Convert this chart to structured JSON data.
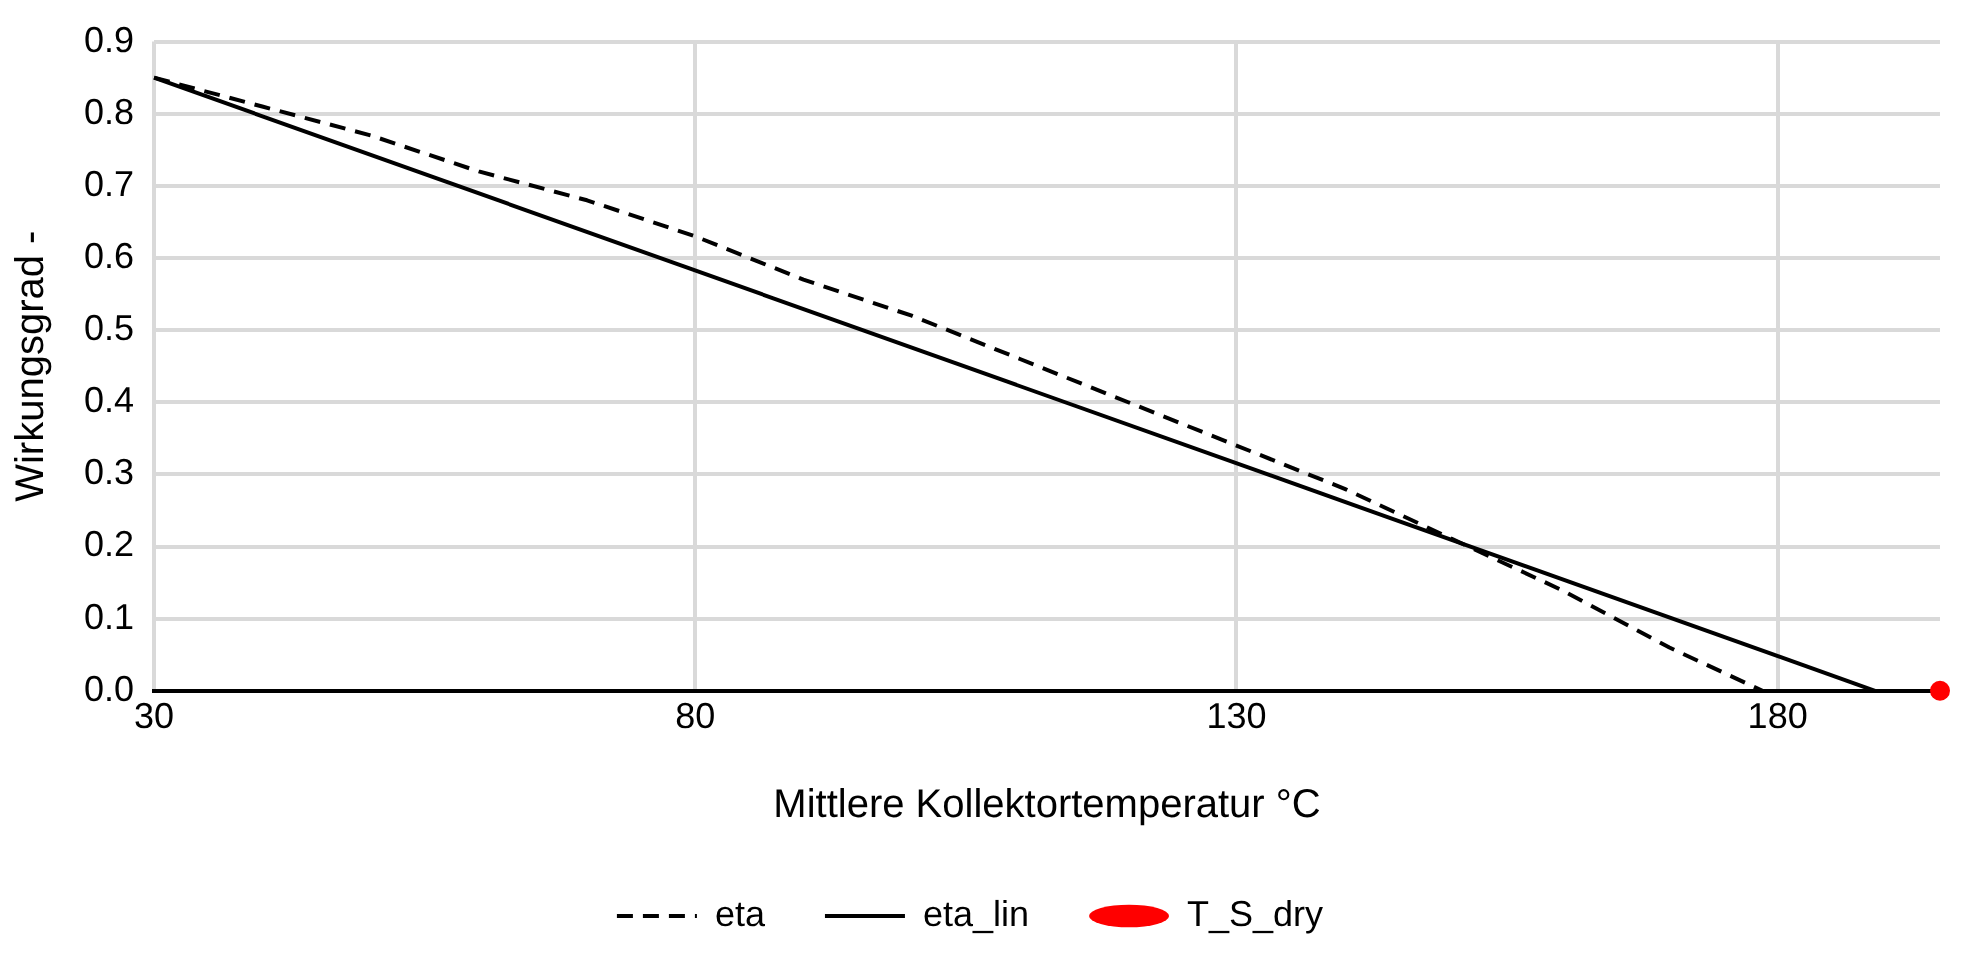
{
  "chart_data": {
    "type": "line",
    "xlabel": "Mittlere Kollektortemperatur °C",
    "ylabel": "Wirkungsgrad -",
    "xlim": [
      30,
      195
    ],
    "xticks": [
      30,
      80,
      130,
      180
    ],
    "ylim": [
      0,
      0.9
    ],
    "yticks": [
      {
        "value": 0,
        "label": "0.0"
      },
      0.1,
      0.2,
      0.3,
      0.4,
      0.5,
      0.6,
      0.7,
      0.8,
      0.9
    ],
    "grid": true,
    "legend": "bottom",
    "series": [
      {
        "name": "eta",
        "type": "line",
        "line_style": "dashed",
        "marker": "none",
        "color": "#000000",
        "x": [
          30,
          40,
          50,
          60,
          70,
          80,
          90,
          100,
          110,
          120,
          130,
          140,
          150,
          160,
          170,
          178.6
        ],
        "values": [
          0.85,
          0.81,
          0.77,
          0.72,
          0.68,
          0.63,
          0.57,
          0.52,
          0.46,
          0.4,
          0.34,
          0.28,
          0.21,
          0.14,
          0.06,
          0
        ]
      },
      {
        "name": "eta_lin",
        "type": "line",
        "line_style": "solid",
        "marker": "none",
        "color": "#000000",
        "x": [
          30,
          189
        ],
        "values": [
          0.85,
          0
        ]
      },
      {
        "name": "T_S_dry",
        "type": "scatter",
        "marker": "circle",
        "color": "#ff0000",
        "x": [
          195
        ],
        "values": [
          0
        ]
      }
    ]
  }
}
